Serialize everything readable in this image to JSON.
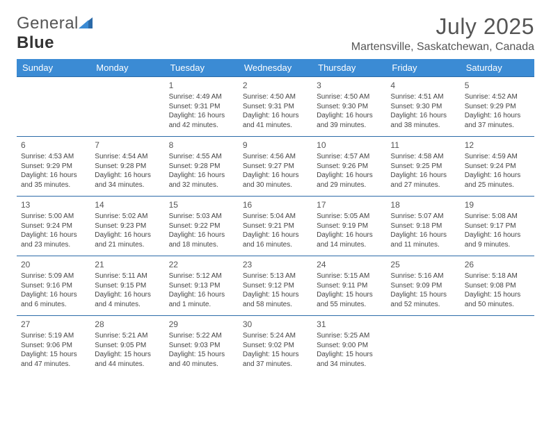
{
  "logo": {
    "text1": "General",
    "text2": "Blue"
  },
  "title": "July 2025",
  "location": "Martensville, Saskatchewan, Canada",
  "colors": {
    "header_bg": "#3b8bd4",
    "border": "#2b6aa8",
    "text": "#444444"
  },
  "dow": [
    "Sunday",
    "Monday",
    "Tuesday",
    "Wednesday",
    "Thursday",
    "Friday",
    "Saturday"
  ],
  "first_dow": 2,
  "days": [
    {
      "n": 1,
      "sr": "4:49 AM",
      "ss": "9:31 PM",
      "dl": "16 hours and 42 minutes."
    },
    {
      "n": 2,
      "sr": "4:50 AM",
      "ss": "9:31 PM",
      "dl": "16 hours and 41 minutes."
    },
    {
      "n": 3,
      "sr": "4:50 AM",
      "ss": "9:30 PM",
      "dl": "16 hours and 39 minutes."
    },
    {
      "n": 4,
      "sr": "4:51 AM",
      "ss": "9:30 PM",
      "dl": "16 hours and 38 minutes."
    },
    {
      "n": 5,
      "sr": "4:52 AM",
      "ss": "9:29 PM",
      "dl": "16 hours and 37 minutes."
    },
    {
      "n": 6,
      "sr": "4:53 AM",
      "ss": "9:29 PM",
      "dl": "16 hours and 35 minutes."
    },
    {
      "n": 7,
      "sr": "4:54 AM",
      "ss": "9:28 PM",
      "dl": "16 hours and 34 minutes."
    },
    {
      "n": 8,
      "sr": "4:55 AM",
      "ss": "9:28 PM",
      "dl": "16 hours and 32 minutes."
    },
    {
      "n": 9,
      "sr": "4:56 AM",
      "ss": "9:27 PM",
      "dl": "16 hours and 30 minutes."
    },
    {
      "n": 10,
      "sr": "4:57 AM",
      "ss": "9:26 PM",
      "dl": "16 hours and 29 minutes."
    },
    {
      "n": 11,
      "sr": "4:58 AM",
      "ss": "9:25 PM",
      "dl": "16 hours and 27 minutes."
    },
    {
      "n": 12,
      "sr": "4:59 AM",
      "ss": "9:24 PM",
      "dl": "16 hours and 25 minutes."
    },
    {
      "n": 13,
      "sr": "5:00 AM",
      "ss": "9:24 PM",
      "dl": "16 hours and 23 minutes."
    },
    {
      "n": 14,
      "sr": "5:02 AM",
      "ss": "9:23 PM",
      "dl": "16 hours and 21 minutes."
    },
    {
      "n": 15,
      "sr": "5:03 AM",
      "ss": "9:22 PM",
      "dl": "16 hours and 18 minutes."
    },
    {
      "n": 16,
      "sr": "5:04 AM",
      "ss": "9:21 PM",
      "dl": "16 hours and 16 minutes."
    },
    {
      "n": 17,
      "sr": "5:05 AM",
      "ss": "9:19 PM",
      "dl": "16 hours and 14 minutes."
    },
    {
      "n": 18,
      "sr": "5:07 AM",
      "ss": "9:18 PM",
      "dl": "16 hours and 11 minutes."
    },
    {
      "n": 19,
      "sr": "5:08 AM",
      "ss": "9:17 PM",
      "dl": "16 hours and 9 minutes."
    },
    {
      "n": 20,
      "sr": "5:09 AM",
      "ss": "9:16 PM",
      "dl": "16 hours and 6 minutes."
    },
    {
      "n": 21,
      "sr": "5:11 AM",
      "ss": "9:15 PM",
      "dl": "16 hours and 4 minutes."
    },
    {
      "n": 22,
      "sr": "5:12 AM",
      "ss": "9:13 PM",
      "dl": "16 hours and 1 minute."
    },
    {
      "n": 23,
      "sr": "5:13 AM",
      "ss": "9:12 PM",
      "dl": "15 hours and 58 minutes."
    },
    {
      "n": 24,
      "sr": "5:15 AM",
      "ss": "9:11 PM",
      "dl": "15 hours and 55 minutes."
    },
    {
      "n": 25,
      "sr": "5:16 AM",
      "ss": "9:09 PM",
      "dl": "15 hours and 52 minutes."
    },
    {
      "n": 26,
      "sr": "5:18 AM",
      "ss": "9:08 PM",
      "dl": "15 hours and 50 minutes."
    },
    {
      "n": 27,
      "sr": "5:19 AM",
      "ss": "9:06 PM",
      "dl": "15 hours and 47 minutes."
    },
    {
      "n": 28,
      "sr": "5:21 AM",
      "ss": "9:05 PM",
      "dl": "15 hours and 44 minutes."
    },
    {
      "n": 29,
      "sr": "5:22 AM",
      "ss": "9:03 PM",
      "dl": "15 hours and 40 minutes."
    },
    {
      "n": 30,
      "sr": "5:24 AM",
      "ss": "9:02 PM",
      "dl": "15 hours and 37 minutes."
    },
    {
      "n": 31,
      "sr": "5:25 AM",
      "ss": "9:00 PM",
      "dl": "15 hours and 34 minutes."
    }
  ],
  "labels": {
    "sunrise": "Sunrise: ",
    "sunset": "Sunset: ",
    "daylight": "Daylight: "
  }
}
